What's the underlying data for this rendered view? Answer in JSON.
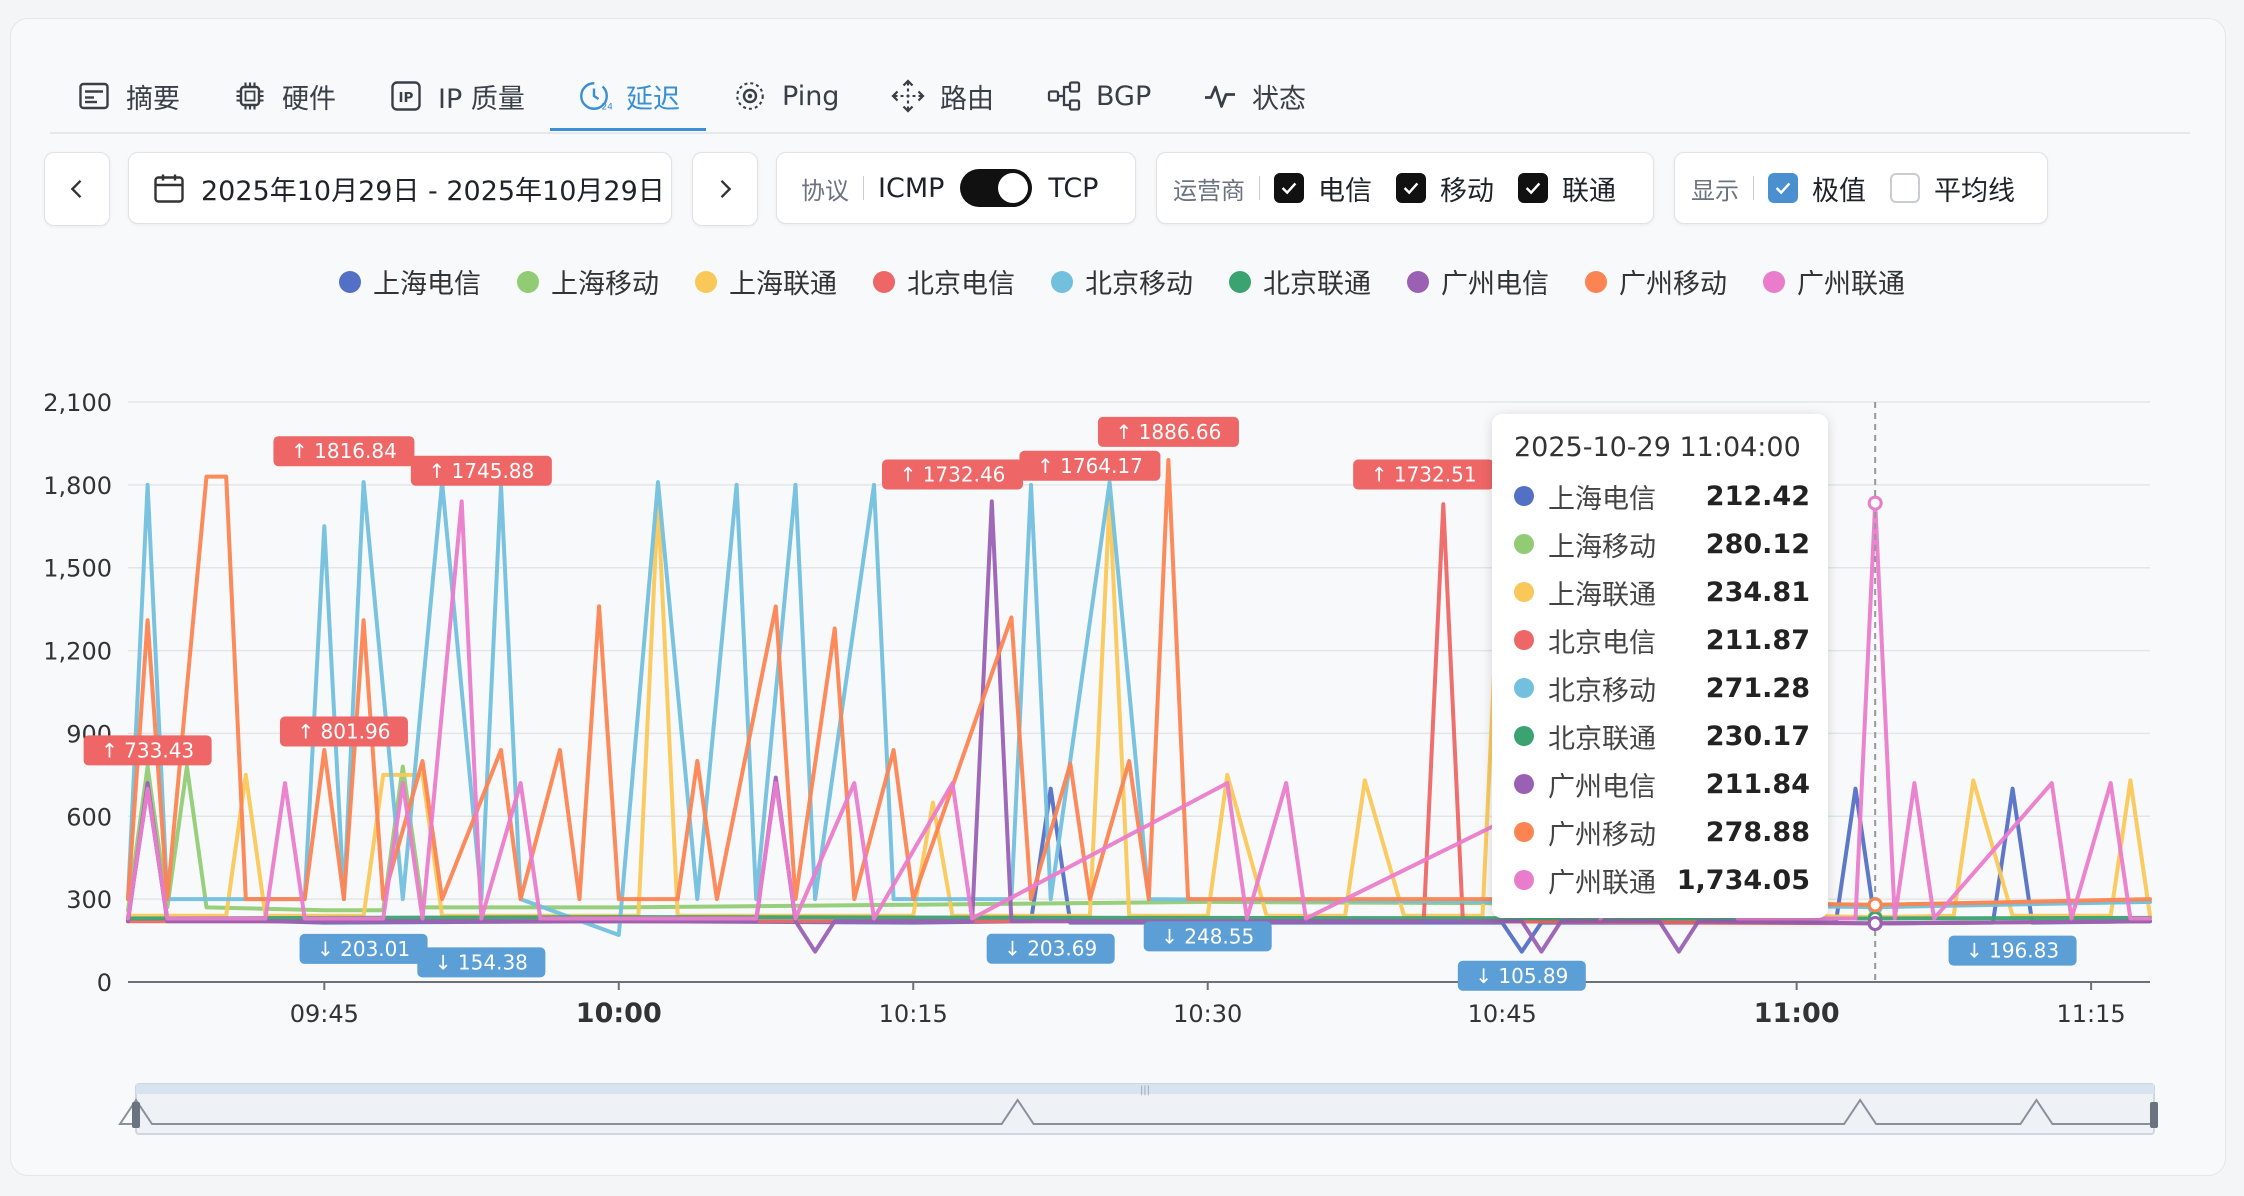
{
  "tabs": [
    {
      "label": "摘要",
      "icon": "summary-icon"
    },
    {
      "label": "硬件",
      "icon": "chip-icon"
    },
    {
      "label": "IP 质量",
      "icon": "ip-icon"
    },
    {
      "label": "延迟",
      "icon": "latency-clock-icon"
    },
    {
      "label": "Ping",
      "icon": "globe-ping-icon"
    },
    {
      "label": "路由",
      "icon": "route-arrows-icon"
    },
    {
      "label": "BGP",
      "icon": "bgp-network-icon"
    },
    {
      "label": "状态",
      "icon": "pulse-icon"
    }
  ],
  "active_tab": "延迟",
  "toolbar": {
    "date_range": "2025年10月29日 - 2025年10月29日",
    "protocol_label": "协议",
    "protocol_left": "ICMP",
    "protocol_right": "TCP",
    "protocol_selected": "TCP",
    "carrier_label": "运营商",
    "carriers": [
      {
        "label": "电信",
        "checked": true
      },
      {
        "label": "移动",
        "checked": true
      },
      {
        "label": "联通",
        "checked": true
      }
    ],
    "display_label": "显示",
    "display_options": [
      {
        "label": "极值",
        "checked": true
      },
      {
        "label": "平均线",
        "checked": false
      }
    ]
  },
  "legend": [
    {
      "name": "上海电信",
      "color": "#5470c6"
    },
    {
      "name": "上海移动",
      "color": "#91cc75"
    },
    {
      "name": "上海联通",
      "color": "#fac858"
    },
    {
      "name": "北京电信",
      "color": "#ee6666"
    },
    {
      "name": "北京移动",
      "color": "#73c0de"
    },
    {
      "name": "北京联通",
      "color": "#3ba272"
    },
    {
      "name": "广州电信",
      "color": "#9a60b4"
    },
    {
      "name": "广州移动",
      "color": "#fc8452"
    },
    {
      "name": "广州联通",
      "color": "#ea7ccc"
    }
  ],
  "tooltip": {
    "title": "2025-10-29 11:04:00",
    "rows": [
      {
        "name": "上海电信",
        "value": "212.42"
      },
      {
        "name": "上海移动",
        "value": "280.12"
      },
      {
        "name": "上海联通",
        "value": "234.81"
      },
      {
        "name": "北京电信",
        "value": "211.87"
      },
      {
        "name": "北京移动",
        "value": "271.28"
      },
      {
        "name": "北京联通",
        "value": "230.17"
      },
      {
        "name": "广州电信",
        "value": "211.84"
      },
      {
        "name": "广州移动",
        "value": "278.88"
      },
      {
        "name": "广州联通",
        "value": "1,734.05"
      }
    ]
  },
  "chart_data": {
    "type": "line",
    "xlabel": "",
    "ylabel": "",
    "ylim": [
      0,
      2100
    ],
    "yticks": [
      "0",
      "300",
      "600",
      "900",
      "1,200",
      "1,500",
      "1,800",
      "2,100"
    ],
    "xlim": [
      "09:35",
      "11:18"
    ],
    "xticks": [
      {
        "t": "09:45",
        "label": "09:45",
        "bold": false
      },
      {
        "t": "10:00",
        "label": "10:00",
        "bold": true
      },
      {
        "t": "10:15",
        "label": "10:15",
        "bold": false
      },
      {
        "t": "10:30",
        "label": "10:30",
        "bold": false
      },
      {
        "t": "10:45",
        "label": "10:45",
        "bold": false
      },
      {
        "t": "11:00",
        "label": "11:00",
        "bold": true
      },
      {
        "t": "11:15",
        "label": "11:15",
        "bold": false
      }
    ],
    "grid": true,
    "legend_position": "top-center",
    "crosshair_time": "11:04",
    "extreme_markers": [
      {
        "kind": "max",
        "label": "↑ 733.43",
        "t": "09:36",
        "y": 733.43,
        "color": "#ee6666"
      },
      {
        "kind": "max",
        "label": "↑ 1816.84",
        "t": "09:46",
        "y": 1816.84,
        "color": "#ee6666"
      },
      {
        "kind": "max",
        "label": "↑ 1745.88",
        "t": "09:53",
        "y": 1745.88,
        "color": "#ee6666"
      },
      {
        "kind": "max",
        "label": "↑ 801.96",
        "t": "09:46",
        "y": 801.96,
        "color": "#ee6666"
      },
      {
        "kind": "max",
        "label": "↑ 1732.46",
        "t": "10:17",
        "y": 1732.46,
        "color": "#ee6666"
      },
      {
        "kind": "max",
        "label": "↑ 1764.17",
        "t": "10:24",
        "y": 1764.17,
        "color": "#ee6666"
      },
      {
        "kind": "max",
        "label": "↑ 1886.66",
        "t": "10:28",
        "y": 1886.66,
        "color": "#ee6666"
      },
      {
        "kind": "max",
        "label": "↑ 1732.51",
        "t": "10:41",
        "y": 1732.51,
        "color": "#ee6666"
      },
      {
        "kind": "min",
        "label": "↓ 203.01",
        "t": "09:47",
        "y": 203.01,
        "color": "#5b9fd6"
      },
      {
        "kind": "min",
        "label": "↓ 154.38",
        "t": "09:53",
        "y": 154.38,
        "color": "#5b9fd6"
      },
      {
        "kind": "min",
        "label": "↓ 203.69",
        "t": "10:22",
        "y": 203.69,
        "color": "#5b9fd6"
      },
      {
        "kind": "min",
        "label": "↓ 248.55",
        "t": "10:30",
        "y": 248.55,
        "color": "#5b9fd6"
      },
      {
        "kind": "min",
        "label": "↓ 105.89",
        "t": "10:46",
        "y": 105.89,
        "color": "#5b9fd6"
      },
      {
        "kind": "min",
        "label": "↓ 196.83",
        "t": "11:11",
        "y": 196.83,
        "color": "#5b9fd6"
      }
    ],
    "series": [
      {
        "name": "上海电信",
        "color": "#5470c6",
        "points": [
          [
            "09:35",
            230
          ],
          [
            "09:36",
            700
          ],
          [
            "09:37",
            230
          ],
          [
            "09:45",
            215
          ],
          [
            "10:00",
            220
          ],
          [
            "10:15",
            215
          ],
          [
            "10:21",
            220
          ],
          [
            "10:22",
            700
          ],
          [
            "10:23",
            215
          ],
          [
            "10:45",
            215
          ],
          [
            "10:46",
            110
          ],
          [
            "10:47",
            215
          ],
          [
            "11:02",
            215
          ],
          [
            "11:03",
            700
          ],
          [
            "11:04",
            212
          ],
          [
            "11:10",
            215
          ],
          [
            "11:11",
            700
          ],
          [
            "11:12",
            215
          ],
          [
            "11:18",
            220
          ]
        ]
      },
      {
        "name": "上海移动",
        "color": "#91cc75",
        "points": [
          [
            "09:35",
            260
          ],
          [
            "09:36",
            780
          ],
          [
            "09:37",
            270
          ],
          [
            "09:38",
            780
          ],
          [
            "09:39",
            270
          ],
          [
            "09:45",
            260
          ],
          [
            "09:48",
            260
          ],
          [
            "09:49",
            780
          ],
          [
            "09:50",
            270
          ],
          [
            "10:00",
            270
          ],
          [
            "10:15",
            280
          ],
          [
            "10:30",
            290
          ],
          [
            "10:45",
            285
          ],
          [
            "11:00",
            280
          ],
          [
            "11:04",
            280
          ],
          [
            "11:18",
            290
          ]
        ]
      },
      {
        "name": "上海联通",
        "color": "#fac858",
        "points": [
          [
            "09:35",
            240
          ],
          [
            "09:40",
            240
          ],
          [
            "09:41",
            750
          ],
          [
            "09:42",
            240
          ],
          [
            "09:47",
            240
          ],
          [
            "09:48",
            750
          ],
          [
            "09:50",
            750
          ],
          [
            "09:51",
            240
          ],
          [
            "10:01",
            240
          ],
          [
            "10:02",
            1740
          ],
          [
            "10:03",
            240
          ],
          [
            "10:15",
            240
          ],
          [
            "10:16",
            650
          ],
          [
            "10:17",
            240
          ],
          [
            "10:24",
            240
          ],
          [
            "10:25",
            1750
          ],
          [
            "10:26",
            240
          ],
          [
            "10:30",
            240
          ],
          [
            "10:31",
            750
          ],
          [
            "10:33",
            240
          ],
          [
            "10:37",
            240
          ],
          [
            "10:38",
            730
          ],
          [
            "10:40",
            240
          ],
          [
            "10:44",
            240
          ],
          [
            "10:45",
            1740
          ],
          [
            "10:46",
            240
          ],
          [
            "11:00",
            240
          ],
          [
            "11:04",
            235
          ],
          [
            "11:08",
            240
          ],
          [
            "11:09",
            730
          ],
          [
            "11:11",
            240
          ],
          [
            "11:16",
            240
          ],
          [
            "11:17",
            730
          ],
          [
            "11:18",
            240
          ]
        ]
      },
      {
        "name": "北京电信",
        "color": "#ee6666",
        "points": [
          [
            "09:35",
            220
          ],
          [
            "10:00",
            220
          ],
          [
            "10:30",
            220
          ],
          [
            "10:41",
            220
          ],
          [
            "10:42",
            1730
          ],
          [
            "10:43",
            220
          ],
          [
            "11:04",
            212
          ],
          [
            "11:18",
            220
          ]
        ]
      },
      {
        "name": "北京移动",
        "color": "#73c0de",
        "points": [
          [
            "09:35",
            300
          ],
          [
            "09:36",
            1800
          ],
          [
            "09:37",
            300
          ],
          [
            "09:44",
            300
          ],
          [
            "09:45",
            1650
          ],
          [
            "09:46",
            300
          ],
          [
            "09:47",
            1810
          ],
          [
            "09:49",
            300
          ],
          [
            "09:51",
            1810
          ],
          [
            "09:53",
            300
          ],
          [
            "09:54",
            1800
          ],
          [
            "09:55",
            300
          ],
          [
            "10:00",
            170
          ],
          [
            "10:02",
            1810
          ],
          [
            "10:04",
            300
          ],
          [
            "10:06",
            1800
          ],
          [
            "10:07",
            300
          ],
          [
            "10:09",
            1800
          ],
          [
            "10:10",
            300
          ],
          [
            "10:13",
            1800
          ],
          [
            "10:14",
            300
          ],
          [
            "10:20",
            300
          ],
          [
            "10:21",
            1800
          ],
          [
            "10:22",
            300
          ],
          [
            "10:25",
            1810
          ],
          [
            "10:27",
            300
          ],
          [
            "10:45",
            290
          ],
          [
            "11:04",
            271
          ],
          [
            "11:18",
            290
          ]
        ]
      },
      {
        "name": "北京联通",
        "color": "#3ba272",
        "points": [
          [
            "09:35",
            230
          ],
          [
            "10:00",
            235
          ],
          [
            "10:30",
            232
          ],
          [
            "11:00",
            230
          ],
          [
            "11:04",
            230
          ],
          [
            "11:18",
            232
          ]
        ]
      },
      {
        "name": "广州电信",
        "color": "#9a60b4",
        "points": [
          [
            "09:35",
            220
          ],
          [
            "09:36",
            720
          ],
          [
            "09:37",
            220
          ],
          [
            "10:07",
            220
          ],
          [
            "10:08",
            740
          ],
          [
            "10:09",
            220
          ],
          [
            "10:10",
            110
          ],
          [
            "10:11",
            220
          ],
          [
            "10:18",
            220
          ],
          [
            "10:19",
            1740
          ],
          [
            "10:20",
            220
          ],
          [
            "10:46",
            220
          ],
          [
            "10:47",
            110
          ],
          [
            "10:48",
            220
          ],
          [
            "10:53",
            220
          ],
          [
            "10:54",
            110
          ],
          [
            "10:55",
            220
          ],
          [
            "11:04",
            212
          ],
          [
            "11:18",
            220
          ]
        ]
      },
      {
        "name": "广州移动",
        "color": "#fc8452",
        "points": [
          [
            "09:35",
            300
          ],
          [
            "09:36",
            1310
          ],
          [
            "09:37",
            300
          ],
          [
            "09:39",
            1830
          ],
          [
            "09:40",
            1830
          ],
          [
            "09:41",
            300
          ],
          [
            "09:44",
            300
          ],
          [
            "09:45",
            840
          ],
          [
            "09:46",
            300
          ],
          [
            "09:47",
            1310
          ],
          [
            "09:48",
            300
          ],
          [
            "09:50",
            800
          ],
          [
            "09:51",
            300
          ],
          [
            "09:54",
            840
          ],
          [
            "09:55",
            300
          ],
          [
            "09:57",
            840
          ],
          [
            "09:58",
            300
          ],
          [
            "09:59",
            1360
          ],
          [
            "10:00",
            300
          ],
          [
            "10:03",
            300
          ],
          [
            "10:04",
            800
          ],
          [
            "10:05",
            300
          ],
          [
            "10:08",
            1360
          ],
          [
            "10:09",
            300
          ],
          [
            "10:11",
            1280
          ],
          [
            "10:12",
            300
          ],
          [
            "10:14",
            840
          ],
          [
            "10:15",
            300
          ],
          [
            "10:20",
            1320
          ],
          [
            "10:21",
            300
          ],
          [
            "10:23",
            790
          ],
          [
            "10:24",
            300
          ],
          [
            "10:26",
            800
          ],
          [
            "10:27",
            300
          ],
          [
            "10:28",
            1890
          ],
          [
            "10:29",
            300
          ],
          [
            "10:45",
            300
          ],
          [
            "11:04",
            279
          ],
          [
            "11:18",
            300
          ]
        ]
      },
      {
        "name": "广州联通",
        "color": "#ea7ccc",
        "points": [
          [
            "09:35",
            230
          ],
          [
            "09:36",
            700
          ],
          [
            "09:37",
            230
          ],
          [
            "09:42",
            230
          ],
          [
            "09:43",
            720
          ],
          [
            "09:44",
            230
          ],
          [
            "09:48",
            230
          ],
          [
            "09:49",
            720
          ],
          [
            "09:50",
            230
          ],
          [
            "09:52",
            1740
          ],
          [
            "09:53",
            230
          ],
          [
            "09:55",
            720
          ],
          [
            "09:56",
            230
          ],
          [
            "10:07",
            230
          ],
          [
            "10:08",
            720
          ],
          [
            "10:09",
            230
          ],
          [
            "10:12",
            720
          ],
          [
            "10:13",
            230
          ],
          [
            "10:17",
            720
          ],
          [
            "10:18",
            230
          ],
          [
            "10:31",
            720
          ],
          [
            "10:32",
            230
          ],
          [
            "10:34",
            720
          ],
          [
            "10:35",
            230
          ],
          [
            "10:49",
            720
          ],
          [
            "10:50",
            230
          ],
          [
            "10:56",
            720
          ],
          [
            "10:57",
            230
          ],
          [
            "11:03",
            230
          ],
          [
            "11:04",
            1734
          ],
          [
            "11:05",
            230
          ],
          [
            "11:06",
            720
          ],
          [
            "11:07",
            230
          ],
          [
            "11:13",
            720
          ],
          [
            "11:14",
            230
          ],
          [
            "11:16",
            720
          ],
          [
            "11:17",
            230
          ],
          [
            "11:18",
            230
          ]
        ]
      }
    ],
    "minimap_peaks_t": [
      "09:35",
      "10:20",
      "11:03",
      "11:12"
    ]
  }
}
